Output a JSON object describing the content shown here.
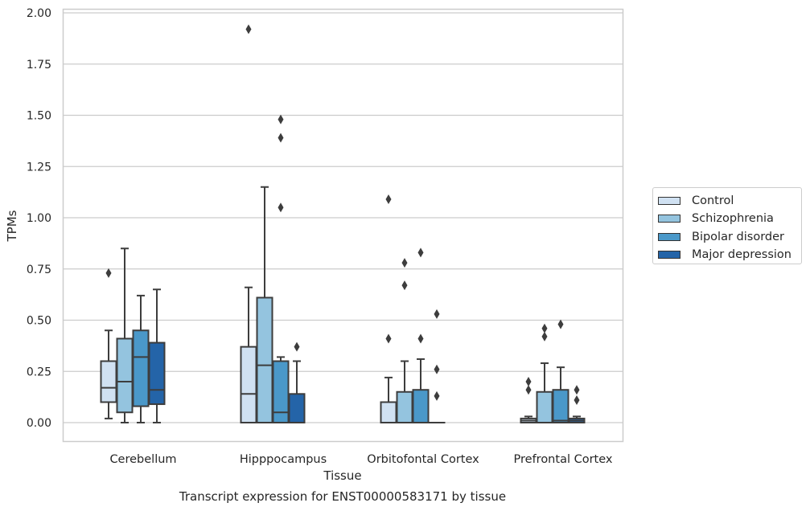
{
  "chart_data": {
    "type": "box",
    "title": "Transcript expression for ENST00000583171 by tissue",
    "xlabel": "Tissue",
    "ylabel": "TPMs",
    "ylim": [
      -0.09,
      2.02
    ],
    "yticks": [
      "0.00",
      "0.25",
      "0.50",
      "0.75",
      "1.00",
      "1.25",
      "1.50",
      "1.75",
      "2.00"
    ],
    "ytick_values": [
      0,
      0.25,
      0.5,
      0.75,
      1.0,
      1.25,
      1.5,
      1.75,
      2.0
    ],
    "grid": true,
    "legend_position": "right",
    "categories": [
      "Cerebellum",
      "Hipppocampus",
      "Orbitofontal Cortex",
      "Prefrontal Cortex"
    ],
    "series": [
      {
        "name": "Control",
        "color": "#d0e1f2",
        "boxes": [
          {
            "whislo": 0.02,
            "q1": 0.1,
            "med": 0.17,
            "q3": 0.3,
            "whishi": 0.45,
            "fliers": [
              0.73
            ]
          },
          {
            "whislo": 0.0,
            "q1": 0.0,
            "med": 0.14,
            "q3": 0.37,
            "whishi": 0.66,
            "fliers": [
              1.92
            ]
          },
          {
            "whislo": 0.0,
            "q1": 0.0,
            "med": 0.0,
            "q3": 0.1,
            "whishi": 0.22,
            "fliers": [
              0.41,
              1.09
            ]
          },
          {
            "whislo": 0.0,
            "q1": 0.0,
            "med": 0.01,
            "q3": 0.02,
            "whishi": 0.03,
            "fliers": [
              0.16,
              0.2
            ]
          }
        ]
      },
      {
        "name": "Schizophrenia",
        "color": "#94c4df",
        "boxes": [
          {
            "whislo": 0.0,
            "q1": 0.05,
            "med": 0.2,
            "q3": 0.41,
            "whishi": 0.85,
            "fliers": []
          },
          {
            "whislo": 0.0,
            "q1": 0.0,
            "med": 0.28,
            "q3": 0.61,
            "whishi": 1.15,
            "fliers": []
          },
          {
            "whislo": 0.0,
            "q1": 0.0,
            "med": 0.0,
            "q3": 0.15,
            "whishi": 0.3,
            "fliers": [
              0.67,
              0.78
            ]
          },
          {
            "whislo": 0.0,
            "q1": 0.0,
            "med": 0.0,
            "q3": 0.15,
            "whishi": 0.29,
            "fliers": [
              0.42,
              0.46
            ]
          }
        ]
      },
      {
        "name": "Bipolar disorder",
        "color": "#4a98c9",
        "boxes": [
          {
            "whislo": 0.0,
            "q1": 0.08,
            "med": 0.32,
            "q3": 0.45,
            "whishi": 0.62,
            "fliers": []
          },
          {
            "whislo": 0.0,
            "q1": 0.0,
            "med": 0.05,
            "q3": 0.3,
            "whishi": 0.32,
            "fliers": [
              1.05,
              1.39,
              1.48
            ]
          },
          {
            "whislo": 0.0,
            "q1": 0.0,
            "med": 0.0,
            "q3": 0.16,
            "whishi": 0.31,
            "fliers": [
              0.41,
              0.83
            ]
          },
          {
            "whislo": 0.0,
            "q1": 0.0,
            "med": 0.01,
            "q3": 0.16,
            "whishi": 0.27,
            "fliers": [
              0.48
            ]
          }
        ]
      },
      {
        "name": "Major depression",
        "color": "#2464a8",
        "boxes": [
          {
            "whislo": 0.0,
            "q1": 0.09,
            "med": 0.16,
            "q3": 0.39,
            "whishi": 0.65,
            "fliers": []
          },
          {
            "whislo": 0.0,
            "q1": 0.0,
            "med": 0.0,
            "q3": 0.14,
            "whishi": 0.3,
            "fliers": [
              0.37
            ]
          },
          {
            "whislo": 0.0,
            "q1": 0.0,
            "med": 0.0,
            "q3": 0.0,
            "whishi": 0.0,
            "fliers": [
              0.13,
              0.26,
              0.53
            ]
          },
          {
            "whislo": 0.0,
            "q1": 0.0,
            "med": 0.01,
            "q3": 0.02,
            "whishi": 0.03,
            "fliers": [
              0.11,
              0.16
            ]
          }
        ]
      }
    ]
  }
}
